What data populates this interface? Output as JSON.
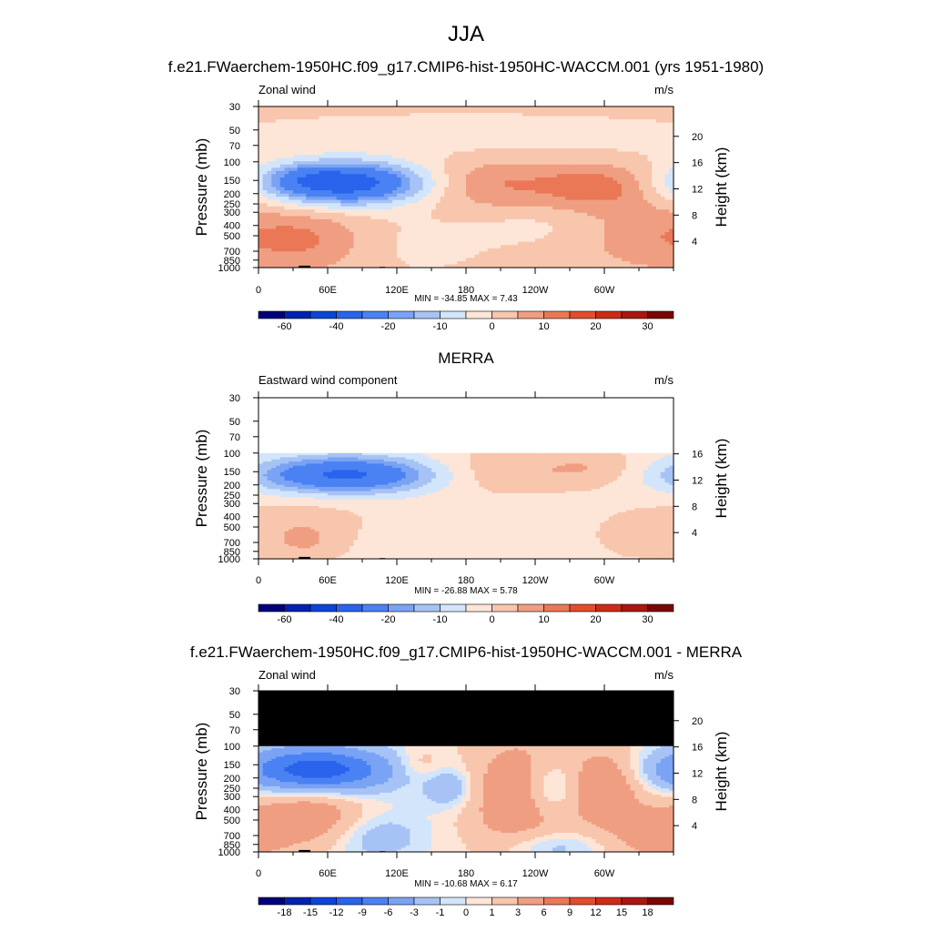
{
  "title": "JJA",
  "palette": {
    "abs": [
      "#00007a",
      "#0022b0",
      "#0c44d8",
      "#2a63ec",
      "#4a82f3",
      "#7aa3f4",
      "#a7c3f5",
      "#d3e5fb",
      "#fde6d8",
      "#f8c6ad",
      "#f09e82",
      "#ea7856",
      "#e24d2b",
      "#cc2c17",
      "#a81810",
      "#7a0606"
    ],
    "diff": [
      "#00007a",
      "#0022b0",
      "#0c44d8",
      "#2a63ec",
      "#4a82f3",
      "#7aa3f4",
      "#a7c3f5",
      "#d3e5fb",
      "#fde6d8",
      "#f8c6ad",
      "#f09e82",
      "#ea7856",
      "#e24d2b",
      "#cc2c17",
      "#a81810",
      "#7a0606"
    ],
    "missing_fill": "#000000",
    "terrain": "#000000"
  },
  "chart_data": [
    {
      "type": "heatmap",
      "suptitle": "f.e21.FWaerchem-1950HC.f09_g17.CMIP6-hist-1950HC-WACCM.001 (yrs 1951-1980)",
      "left_label": "Zonal wind",
      "units": "m/s",
      "ylabel": "Pressure (mb)",
      "ylabel_right": "Height (km)",
      "x_ticks": [
        "0",
        "60E",
        "120E",
        "180",
        "120W",
        "60W"
      ],
      "y_ticks": [
        "30",
        "50",
        "70",
        "100",
        "150",
        "200",
        "250",
        "300",
        "400",
        "500",
        "700",
        "850",
        "1000"
      ],
      "height_ticks": [
        "20",
        "16",
        "12",
        "8",
        "4"
      ],
      "stats": "MIN = -34.85  MAX =   7.43",
      "colorbar_labels": [
        "-60",
        "-40",
        "-20",
        "-10",
        "0",
        "10",
        "20",
        "30"
      ],
      "colorbar_levels": [
        -70,
        -60,
        -50,
        -40,
        -30,
        -20,
        -15,
        -10,
        -5,
        0,
        5,
        10,
        15,
        20,
        25,
        30
      ],
      "ptop_data": 30,
      "fields": {
        "background": 2,
        "blobs": [
          {
            "lon": 75,
            "p": 160,
            "rx": 50,
            "ry": 0.32,
            "amp": -38
          },
          {
            "lon": 45,
            "p": 140,
            "rx": 22,
            "ry": 0.2,
            "amp": -6
          },
          {
            "lon": 45,
            "p": 550,
            "rx": 35,
            "ry": 0.45,
            "amp": 8
          },
          {
            "lon": 200,
            "p": 160,
            "rx": 45,
            "ry": 0.4,
            "amp": 9
          },
          {
            "lon": 295,
            "p": 170,
            "rx": 35,
            "ry": 0.35,
            "amp": 11
          },
          {
            "lon": 340,
            "p": 500,
            "rx": 40,
            "ry": 0.5,
            "amp": 6
          },
          {
            "lon": 240,
            "p": 400,
            "rx": 40,
            "ry": 0.3,
            "amp": -3
          },
          {
            "lon": 140,
            "p": 600,
            "rx": 55,
            "ry": 0.6,
            "amp": -3
          },
          {
            "lon": 180,
            "p": 60,
            "rx": 200,
            "ry": 0.45,
            "amp": -4
          }
        ]
      }
    },
    {
      "type": "heatmap",
      "suptitle": "MERRA",
      "left_label": "Eastward wind component",
      "units": "m/s",
      "ylabel": "Pressure (mb)",
      "ylabel_right": "Height (km)",
      "x_ticks": [
        "0",
        "60E",
        "120E",
        "180",
        "120W",
        "60W"
      ],
      "y_ticks": [
        "30",
        "50",
        "70",
        "100",
        "150",
        "200",
        "250",
        "300",
        "400",
        "500",
        "700",
        "850",
        "1000"
      ],
      "height_ticks": [
        "16",
        "12",
        "8",
        "4"
      ],
      "stats": "MIN = -26.88  MAX =   5.78",
      "colorbar_labels": [
        "-60",
        "-40",
        "-20",
        "-10",
        "0",
        "10",
        "20",
        "30"
      ],
      "colorbar_levels": [
        -70,
        -60,
        -50,
        -40,
        -30,
        -20,
        -15,
        -10,
        -5,
        0,
        5,
        10,
        15,
        20,
        25,
        30
      ],
      "ptop_data": 100,
      "fields": {
        "background": -2,
        "blobs": [
          {
            "lon": 75,
            "p": 160,
            "rx": 55,
            "ry": 0.28,
            "amp": -30
          },
          {
            "lon": 40,
            "p": 700,
            "rx": 25,
            "ry": 0.3,
            "amp": 7
          },
          {
            "lon": 200,
            "p": 150,
            "rx": 40,
            "ry": 0.35,
            "amp": 6
          },
          {
            "lon": 285,
            "p": 140,
            "rx": 35,
            "ry": 0.3,
            "amp": 7
          },
          {
            "lon": 330,
            "p": 600,
            "rx": 30,
            "ry": 0.4,
            "amp": 4
          },
          {
            "lon": 40,
            "p": 400,
            "rx": 40,
            "ry": 0.3,
            "amp": 4
          }
        ]
      }
    },
    {
      "type": "heatmap",
      "suptitle": "f.e21.FWaerchem-1950HC.f09_g17.CMIP6-hist-1950HC-WACCM.001 - MERRA",
      "left_label": "Zonal wind",
      "units": "m/s",
      "ylabel": "Pressure (mb)",
      "ylabel_right": "Height (km)",
      "x_ticks": [
        "0",
        "60E",
        "120E",
        "180",
        "120W",
        "60W"
      ],
      "y_ticks": [
        "30",
        "50",
        "70",
        "100",
        "150",
        "200",
        "250",
        "300",
        "400",
        "500",
        "700",
        "850",
        "1000"
      ],
      "height_ticks": [
        "20",
        "16",
        "12",
        "8",
        "4"
      ],
      "stats": "MIN = -10.68  MAX =   6.17",
      "colorbar_labels": [
        "-18",
        "-15",
        "-12",
        "-9",
        "-6",
        "-3",
        "-1",
        "0",
        "1",
        "3",
        "6",
        "9",
        "12",
        "15",
        "18"
      ],
      "colorbar_levels": [
        -21,
        -18,
        -15,
        -12,
        -9,
        -6,
        -3,
        -1,
        0,
        1,
        3,
        6,
        9,
        12,
        15,
        18
      ],
      "ptop_data": 100,
      "missing_above": 100,
      "fields": {
        "background": 0.5,
        "blobs": [
          {
            "lon": 50,
            "p": 170,
            "rx": 45,
            "ry": 0.35,
            "amp": -12
          },
          {
            "lon": 45,
            "p": 450,
            "rx": 35,
            "ry": 0.5,
            "amp": 5
          },
          {
            "lon": 225,
            "p": 300,
            "rx": 30,
            "ry": 0.9,
            "amp": 5
          },
          {
            "lon": 300,
            "p": 250,
            "rx": 22,
            "ry": 0.6,
            "amp": 5.5
          },
          {
            "lon": 255,
            "p": 250,
            "rx": 18,
            "ry": 0.4,
            "amp": -4
          },
          {
            "lon": 165,
            "p": 250,
            "rx": 15,
            "ry": 0.3,
            "amp": -3.5
          },
          {
            "lon": 100,
            "p": 700,
            "rx": 30,
            "ry": 0.4,
            "amp": -3
          },
          {
            "lon": 345,
            "p": 700,
            "rx": 25,
            "ry": 0.4,
            "amp": 4
          },
          {
            "lon": 140,
            "p": 150,
            "rx": 15,
            "ry": 0.25,
            "amp": 2
          },
          {
            "lon": 250,
            "p": 900,
            "rx": 30,
            "ry": 0.25,
            "amp": -3
          }
        ]
      }
    }
  ]
}
